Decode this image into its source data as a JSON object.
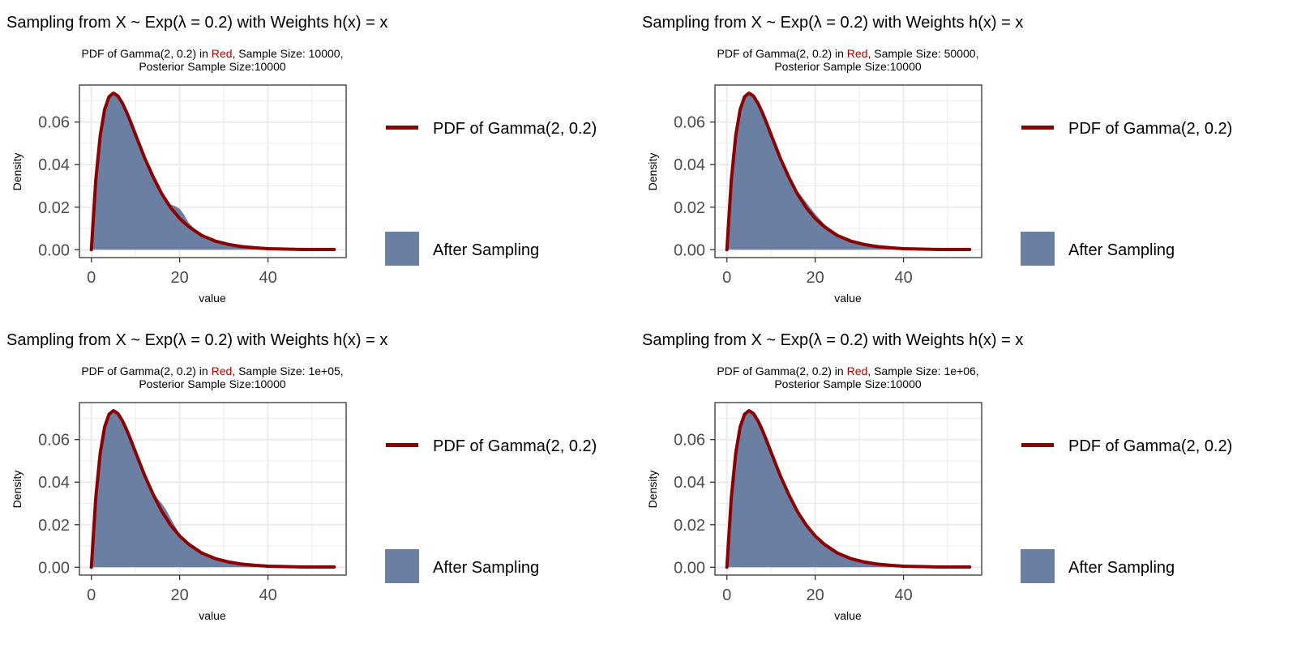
{
  "colors": {
    "curve": "#8b0000",
    "fill": "#6b7fa3",
    "highlight": "#b00000",
    "grid": "#ebebeb",
    "frame": "#333333"
  },
  "chart_data": [
    {
      "type": "area",
      "title": "Sampling from X ~ Exp(λ = 0.2) with Weights h(x) = x",
      "subtitle_prefix": "PDF of Gamma(2, 0.2) in ",
      "subtitle_highlight": "Red",
      "subtitle_suffix": ", Sample Size: 10000,",
      "subtitle_line2": "Posterior Sample Size:10000",
      "xlabel": "value",
      "ylabel": "Density",
      "xlim": [
        -2.7,
        57.7
      ],
      "ylim": [
        -0.0037,
        0.0774
      ],
      "x_ticks": [
        0,
        20,
        40
      ],
      "x_tick_labels": [
        "0",
        "20",
        "40"
      ],
      "y_ticks": [
        0,
        0.02,
        0.04,
        0.06
      ],
      "y_tick_labels": [
        "0.00",
        "0.02",
        "0.04",
        "0.06"
      ],
      "grid": true,
      "legend_position": "right",
      "legend": [
        "PDF of Gamma(2, 0.2)",
        "After Sampling"
      ],
      "series": [
        {
          "label": "PDF of Gamma(2, 0.2)",
          "kind": "line",
          "x": [
            0,
            1,
            2,
            3,
            4,
            5,
            6,
            7,
            8,
            9,
            10,
            12,
            14,
            16,
            18,
            20,
            22,
            25,
            28,
            31,
            34,
            37,
            40,
            44,
            48,
            52,
            55
          ],
          "y": [
            0,
            0.0327,
            0.0536,
            0.0659,
            0.0719,
            0.0736,
            0.0723,
            0.069,
            0.0646,
            0.0595,
            0.0541,
            0.0435,
            0.0342,
            0.0261,
            0.0197,
            0.0147,
            0.0109,
            0.0067,
            0.0041,
            0.0025,
            0.0015,
            0.0009,
            0.0005,
            0.0003,
            0.0001,
            0.0001,
            0.0001
          ]
        },
        {
          "label": "After Sampling",
          "kind": "density",
          "x": [
            0,
            1,
            2,
            3,
            4,
            5,
            6,
            7,
            8,
            10,
            12,
            14,
            16,
            17,
            18,
            19,
            20,
            21,
            22,
            24,
            26,
            28,
            30,
            33,
            36,
            40,
            45,
            50
          ],
          "y": [
            0,
            0.033,
            0.0545,
            0.0668,
            0.0722,
            0.073,
            0.0715,
            0.0682,
            0.0638,
            0.0535,
            0.043,
            0.0335,
            0.0255,
            0.0225,
            0.0212,
            0.0205,
            0.0192,
            0.0165,
            0.0128,
            0.0085,
            0.0058,
            0.004,
            0.0026,
            0.0014,
            0.0007,
            0.0003,
            0.0001,
            0
          ]
        }
      ]
    },
    {
      "type": "area",
      "title": "Sampling from X ~ Exp(λ = 0.2) with Weights h(x) = x",
      "subtitle_prefix": "PDF of Gamma(2, 0.2) in ",
      "subtitle_highlight": "Red",
      "subtitle_suffix": ", Sample Size: 50000,",
      "subtitle_line2": "Posterior Sample Size:10000",
      "xlabel": "value",
      "ylabel": "Density",
      "xlim": [
        -2.7,
        57.7
      ],
      "ylim": [
        -0.0037,
        0.0774
      ],
      "x_ticks": [
        0,
        20,
        40
      ],
      "x_tick_labels": [
        "0",
        "20",
        "40"
      ],
      "y_ticks": [
        0,
        0.02,
        0.04,
        0.06
      ],
      "y_tick_labels": [
        "0.00",
        "0.02",
        "0.04",
        "0.06"
      ],
      "grid": true,
      "legend_position": "right",
      "legend": [
        "PDF of Gamma(2, 0.2)",
        "After Sampling"
      ],
      "series": [
        {
          "label": "PDF of Gamma(2, 0.2)",
          "kind": "line",
          "x": [
            0,
            1,
            2,
            3,
            4,
            5,
            6,
            7,
            8,
            9,
            10,
            12,
            14,
            16,
            18,
            20,
            22,
            25,
            28,
            31,
            34,
            37,
            40,
            44,
            48,
            52,
            55
          ],
          "y": [
            0,
            0.0327,
            0.0536,
            0.0659,
            0.0719,
            0.0736,
            0.0723,
            0.069,
            0.0646,
            0.0595,
            0.0541,
            0.0435,
            0.0342,
            0.0261,
            0.0197,
            0.0147,
            0.0109,
            0.0067,
            0.0041,
            0.0025,
            0.0015,
            0.0009,
            0.0005,
            0.0003,
            0.0001,
            0.0001,
            0.0001
          ]
        },
        {
          "label": "After Sampling",
          "kind": "density",
          "x": [
            0,
            1,
            2,
            3,
            4,
            5,
            6,
            7,
            8,
            10,
            12,
            14,
            16,
            18,
            20,
            22,
            24,
            26,
            28,
            30,
            33,
            36,
            40,
            45,
            50
          ],
          "y": [
            0,
            0.034,
            0.056,
            0.068,
            0.0728,
            0.0732,
            0.0712,
            0.0676,
            0.063,
            0.0528,
            0.0428,
            0.0342,
            0.0276,
            0.0222,
            0.0168,
            0.0122,
            0.0088,
            0.0062,
            0.0043,
            0.0029,
            0.0016,
            0.0008,
            0.0003,
            0.0001,
            0
          ]
        }
      ]
    },
    {
      "type": "area",
      "title": "Sampling from X ~ Exp(λ = 0.2) with Weights h(x) = x",
      "subtitle_prefix": "PDF of Gamma(2, 0.2) in ",
      "subtitle_highlight": "Red",
      "subtitle_suffix": ", Sample Size: 1e+05,",
      "subtitle_line2": "Posterior Sample Size:10000",
      "xlabel": "value",
      "ylabel": "Density",
      "xlim": [
        -2.7,
        57.7
      ],
      "ylim": [
        -0.0037,
        0.0774
      ],
      "x_ticks": [
        0,
        20,
        40
      ],
      "x_tick_labels": [
        "0",
        "20",
        "40"
      ],
      "y_ticks": [
        0,
        0.02,
        0.04,
        0.06
      ],
      "y_tick_labels": [
        "0.00",
        "0.02",
        "0.04",
        "0.06"
      ],
      "grid": true,
      "legend_position": "right",
      "legend": [
        "PDF of Gamma(2, 0.2)",
        "After Sampling"
      ],
      "series": [
        {
          "label": "PDF of Gamma(2, 0.2)",
          "kind": "line",
          "x": [
            0,
            1,
            2,
            3,
            4,
            5,
            6,
            7,
            8,
            9,
            10,
            12,
            14,
            16,
            18,
            20,
            22,
            25,
            28,
            31,
            34,
            37,
            40,
            44,
            48,
            52,
            55
          ],
          "y": [
            0,
            0.0327,
            0.0536,
            0.0659,
            0.0719,
            0.0736,
            0.0723,
            0.069,
            0.0646,
            0.0595,
            0.0541,
            0.0435,
            0.0342,
            0.0261,
            0.0197,
            0.0147,
            0.0109,
            0.0067,
            0.0041,
            0.0025,
            0.0015,
            0.0009,
            0.0005,
            0.0003,
            0.0001,
            0.0001,
            0.0001
          ]
        },
        {
          "label": "After Sampling",
          "kind": "density",
          "x": [
            0,
            1,
            2,
            3,
            4,
            5,
            6,
            7,
            8,
            10,
            12,
            14,
            15,
            16,
            17,
            18,
            20,
            22,
            24,
            26,
            28,
            30,
            33,
            36,
            40,
            45,
            50
          ],
          "y": [
            0,
            0.0335,
            0.055,
            0.067,
            0.0724,
            0.0734,
            0.0716,
            0.068,
            0.0636,
            0.0534,
            0.0432,
            0.0352,
            0.0322,
            0.0298,
            0.0268,
            0.0228,
            0.0155,
            0.011,
            0.008,
            0.0058,
            0.004,
            0.0027,
            0.0015,
            0.0008,
            0.0003,
            0.0001,
            0
          ]
        }
      ]
    },
    {
      "type": "area",
      "title": "Sampling from X ~ Exp(λ = 0.2) with Weights h(x) = x",
      "subtitle_prefix": "PDF of Gamma(2, 0.2) in ",
      "subtitle_highlight": "Red",
      "subtitle_suffix": ", Sample Size: 1e+06,",
      "subtitle_line2": "Posterior Sample Size:10000",
      "xlabel": "value",
      "ylabel": "Density",
      "xlim": [
        -2.7,
        57.7
      ],
      "ylim": [
        -0.0037,
        0.0774
      ],
      "x_ticks": [
        0,
        20,
        40
      ],
      "x_tick_labels": [
        "0",
        "20",
        "40"
      ],
      "y_ticks": [
        0,
        0.02,
        0.04,
        0.06
      ],
      "y_tick_labels": [
        "0.00",
        "0.02",
        "0.04",
        "0.06"
      ],
      "grid": true,
      "legend_position": "right",
      "legend": [
        "PDF of Gamma(2, 0.2)",
        "After Sampling"
      ],
      "series": [
        {
          "label": "PDF of Gamma(2, 0.2)",
          "kind": "line",
          "x": [
            0,
            1,
            2,
            3,
            4,
            5,
            6,
            7,
            8,
            9,
            10,
            12,
            14,
            16,
            18,
            20,
            22,
            25,
            28,
            31,
            34,
            37,
            40,
            44,
            48,
            52,
            55
          ],
          "y": [
            0,
            0.0327,
            0.0536,
            0.0659,
            0.0719,
            0.0736,
            0.0723,
            0.069,
            0.0646,
            0.0595,
            0.0541,
            0.0435,
            0.0342,
            0.0261,
            0.0197,
            0.0147,
            0.0109,
            0.0067,
            0.0041,
            0.0025,
            0.0015,
            0.0009,
            0.0005,
            0.0003,
            0.0001,
            0.0001,
            0.0001
          ]
        },
        {
          "label": "After Sampling",
          "kind": "density",
          "x": [
            0,
            1,
            2,
            3,
            4,
            5,
            6,
            7,
            8,
            10,
            12,
            14,
            16,
            18,
            20,
            22,
            25,
            28,
            31,
            34,
            37,
            40,
            45,
            50
          ],
          "y": [
            0,
            0.032,
            0.053,
            0.0655,
            0.0716,
            0.0732,
            0.072,
            0.0688,
            0.0644,
            0.054,
            0.0434,
            0.034,
            0.026,
            0.0196,
            0.0146,
            0.0108,
            0.0066,
            0.004,
            0.0024,
            0.0014,
            0.0008,
            0.0004,
            0.0001,
            0
          ]
        }
      ]
    }
  ]
}
